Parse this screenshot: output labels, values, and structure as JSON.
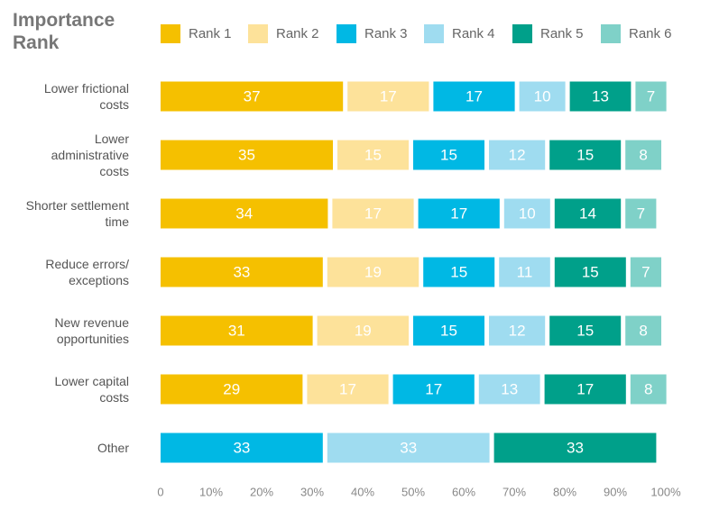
{
  "chart_data": {
    "type": "stacked-bar-horizontal",
    "title": "Importance Rank",
    "categories": [
      "Lower frictional costs",
      "Lower administrative costs",
      "Shorter settlement time",
      "Reduce errors/ exceptions",
      "New revenue opportunities",
      "Lower capital costs",
      "Other"
    ],
    "series": [
      {
        "name": "Rank 1",
        "color": "#f5c000",
        "values": [
          37,
          35,
          34,
          33,
          31,
          29,
          null
        ]
      },
      {
        "name": "Rank 2",
        "color": "#fde29a",
        "values": [
          17,
          15,
          17,
          19,
          19,
          17,
          null
        ]
      },
      {
        "name": "Rank 3",
        "color": "#00b8e4",
        "values": [
          17,
          15,
          17,
          15,
          15,
          17,
          33
        ]
      },
      {
        "name": "Rank 4",
        "color": "#9fdcf0",
        "values": [
          10,
          12,
          10,
          11,
          12,
          13,
          33
        ]
      },
      {
        "name": "Rank 5",
        "color": "#00a08a",
        "values": [
          13,
          15,
          14,
          15,
          15,
          17,
          33
        ]
      },
      {
        "name": "Rank 6",
        "color": "#7fd1c8",
        "values": [
          7,
          8,
          7,
          7,
          8,
          8,
          null
        ]
      }
    ],
    "xlim": [
      0,
      100
    ],
    "xticks": [
      0,
      {
        "value": 10,
        "label": "10%"
      },
      {
        "value": 20,
        "label": "20%"
      },
      {
        "value": 30,
        "label": "30%"
      },
      {
        "value": 40,
        "label": "40%"
      },
      {
        "value": 50,
        "label": "50%"
      },
      {
        "value": 60,
        "label": "60%"
      },
      {
        "value": 70,
        "label": "70%"
      },
      {
        "value": 80,
        "label": "80%"
      },
      {
        "value": 90,
        "label": "90%"
      },
      {
        "value": 100,
        "label": "100%"
      }
    ]
  }
}
